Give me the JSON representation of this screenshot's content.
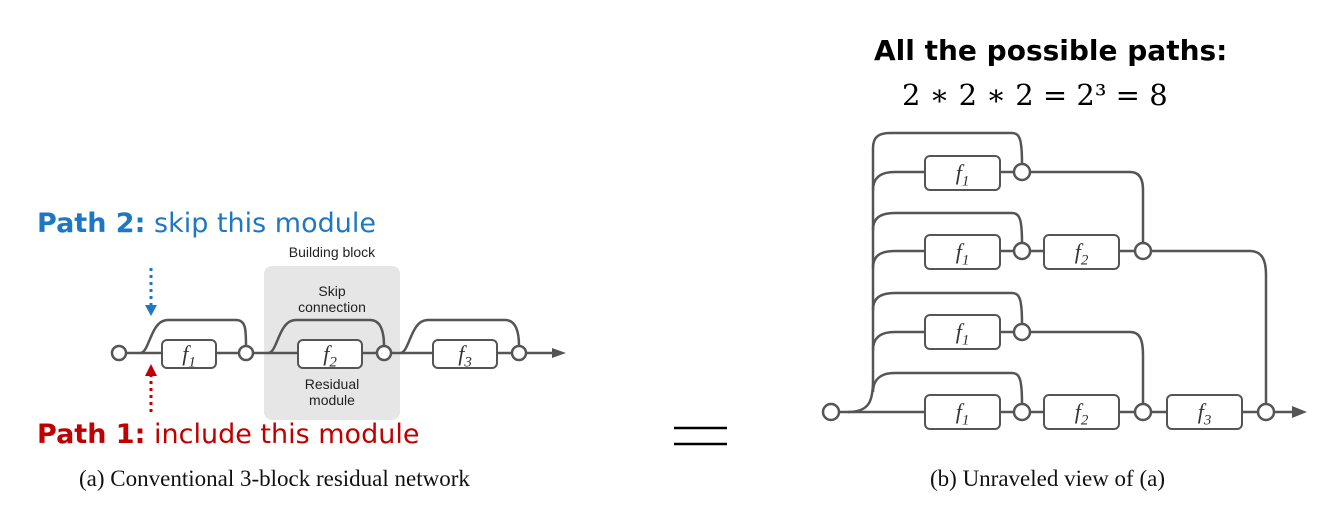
{
  "left": {
    "path2_key": "Path 2:",
    "path2_text": "skip this module",
    "path1_key": "Path 1:",
    "path1_text": "include this module",
    "building_block": "Building block",
    "skip_connection_line1": "Skip",
    "skip_connection_line2": "connection",
    "residual_line1": "Residual",
    "residual_line2": "module",
    "caption": "(a) Conventional 3-block residual network",
    "modules": [
      {
        "base": "f",
        "sub": "1"
      },
      {
        "base": "f",
        "sub": "2"
      },
      {
        "base": "f",
        "sub": "3"
      }
    ]
  },
  "equals": "=",
  "right": {
    "title": "All the possible paths:",
    "equation": "2 ∗ 2 ∗ 2 = 2³ = 8",
    "caption": "(b) Unraveled view of (a)",
    "modules": [
      {
        "base": "f",
        "sub": "1"
      },
      {
        "base": "f",
        "sub": "1"
      },
      {
        "base": "f",
        "sub": "2"
      },
      {
        "base": "f",
        "sub": "1"
      },
      {
        "base": "f",
        "sub": "1"
      },
      {
        "base": "f",
        "sub": "2"
      },
      {
        "base": "f",
        "sub": "3"
      }
    ]
  },
  "colors": {
    "path2": "#1f77c4",
    "path1": "#c00000",
    "line": "#555555",
    "block_bg": "#e6e6e6"
  }
}
